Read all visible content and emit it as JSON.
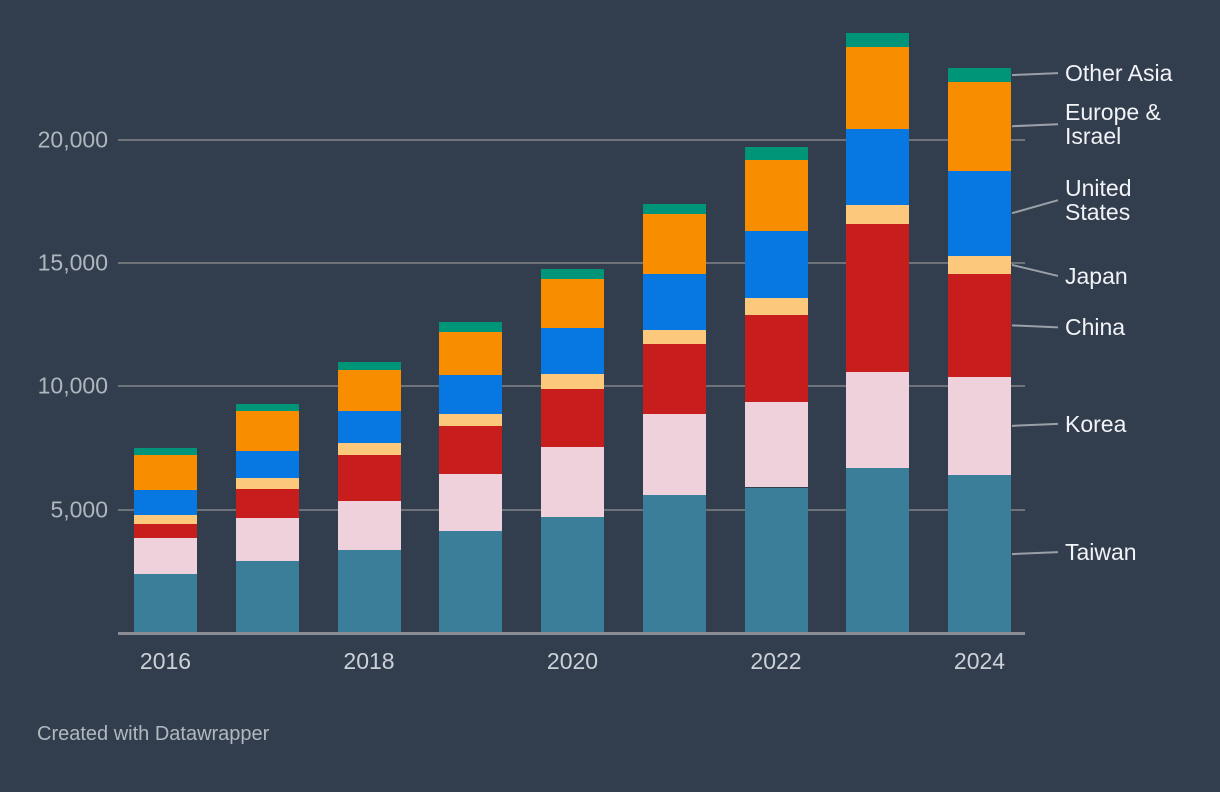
{
  "chart_data": {
    "type": "bar",
    "subtype": "stacked-vertical",
    "title": "",
    "x": [
      2016,
      2017,
      2018,
      2019,
      2020,
      2021,
      2022,
      2023,
      2024
    ],
    "x_tick_labels": [
      "2016",
      "2018",
      "2020",
      "2022",
      "2024"
    ],
    "y_ticks": [
      5000,
      10000,
      15000,
      20000
    ],
    "y_tick_labels": [
      "5,000",
      "10,000",
      "15,000",
      "20,000"
    ],
    "ylim": [
      0,
      24500
    ],
    "grid": "horizontal",
    "legend_position": "right-direct-labels",
    "stack_order": "bottom-to-top",
    "series": [
      {
        "name": "Taiwan",
        "color": "#3b7e99",
        "values": [
          2400,
          2900,
          3350,
          4150,
          4700,
          5600,
          5900,
          6700,
          6400
        ]
      },
      {
        "name": "Korea",
        "color": "#eed1da",
        "values": [
          1450,
          1750,
          2000,
          2300,
          2850,
          3300,
          3450,
          3900,
          4000
        ]
      },
      {
        "name": "China",
        "color": "#c71e1d",
        "values": [
          550,
          1200,
          1850,
          1950,
          2350,
          2800,
          3550,
          6000,
          4150
        ]
      },
      {
        "name": "Japan",
        "color": "#fcc97c",
        "values": [
          400,
          450,
          500,
          500,
          600,
          600,
          700,
          750,
          750
        ]
      },
      {
        "name": "United States",
        "color": "#0777e1",
        "values": [
          1000,
          1100,
          1300,
          1550,
          1850,
          2250,
          2700,
          3100,
          3450
        ]
      },
      {
        "name": "Europe & Israel",
        "color": "#f98d00",
        "values": [
          1400,
          1600,
          1650,
          1750,
          2000,
          2450,
          2900,
          3300,
          3600
        ]
      },
      {
        "name": "Other Asia",
        "color": "#009479",
        "values": [
          300,
          300,
          350,
          400,
          400,
          400,
          500,
          580,
          550
        ]
      }
    ],
    "totals": [
      7500,
      9300,
      11000,
      12600,
      14750,
      17400,
      19700,
      24330,
      22900
    ],
    "legend_labels_top_to_bottom": [
      "Other Asia",
      "Europe & Israel",
      "United States",
      "Japan",
      "China",
      "Korea",
      "Taiwan"
    ]
  },
  "footer": {
    "credit": "Created with Datawrapper"
  },
  "colors": {
    "background": "#323d4d",
    "gridline": "#6e737a",
    "axis_line": "#8a8e94",
    "y_label_text": "#b0b6bd",
    "x_label_text": "#ccd1d8",
    "legend_text": "#f1f3f6",
    "leader_line": "#9aa0a7",
    "footer_text": "#b2b8bf"
  }
}
